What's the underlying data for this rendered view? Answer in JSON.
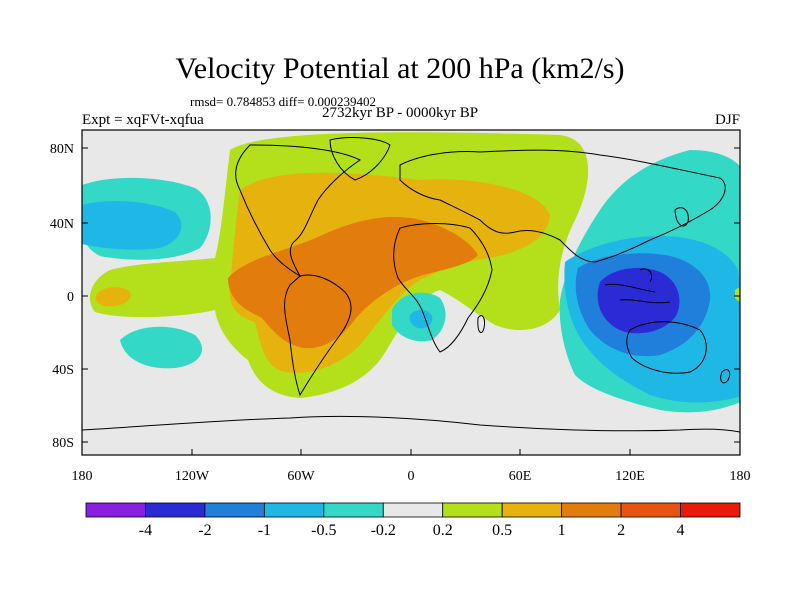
{
  "title": "Velocity Potential at 200 hPa (km2/s)",
  "stats": "rmsd= 0.784853 diff= 0.000239402",
  "experiment": "Expt = xqFVt-xqfua",
  "period": "2732kyr BP - 0000kyr BP",
  "season": "DJF",
  "map": {
    "lat_labels": [
      "80N",
      "40N",
      "0",
      "40S",
      "80S"
    ],
    "lon_labels": [
      "180",
      "120W",
      "60W",
      "0",
      "60E",
      "120E",
      "180"
    ]
  },
  "colorbar": {
    "labels": [
      "-4",
      "-2",
      "-1",
      "-0.5",
      "-0.2",
      "0.2",
      "0.5",
      "1",
      "2",
      "4"
    ],
    "colors": [
      "#8a1fe0",
      "#2b2bd6",
      "#1f7fdb",
      "#1fb8e6",
      "#33d9c6",
      "#e8e8e8",
      "#b3e01a",
      "#e5b20e",
      "#e27c0d",
      "#e8530f",
      "#e81a0a"
    ]
  }
}
